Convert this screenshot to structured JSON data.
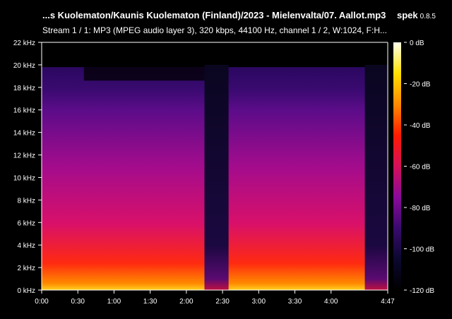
{
  "header": {
    "title": "...s Kuolematon/Kaunis Kuolematon (Finland)/2023 - Mielenvalta/07. Aallot.mp3",
    "app_name": "spek",
    "app_version": "0.8.5",
    "subtitle": "Stream 1 / 1: MP3 (MPEG audio layer 3), 320 kbps, 44100 Hz, channel 1 / 2, W:1024, F:H..."
  },
  "chart_data": {
    "type": "heatmap",
    "title": "",
    "xlabel": "",
    "ylabel": "",
    "xlim_seconds": [
      0,
      287
    ],
    "ylim_khz": [
      0,
      22
    ],
    "x_ticks": [
      {
        "label": "0:00",
        "value": 0
      },
      {
        "label": "0:30",
        "value": 30
      },
      {
        "label": "1:00",
        "value": 60
      },
      {
        "label": "1:30",
        "value": 90
      },
      {
        "label": "2:00",
        "value": 120
      },
      {
        "label": "2:30",
        "value": 150
      },
      {
        "label": "3:00",
        "value": 180
      },
      {
        "label": "3:30",
        "value": 210
      },
      {
        "label": "4:00",
        "value": 240
      },
      {
        "label": "4:47",
        "value": 287
      }
    ],
    "y_ticks": [
      {
        "label": "0 kHz",
        "value": 0
      },
      {
        "label": "2 kHz",
        "value": 2
      },
      {
        "label": "4 kHz",
        "value": 4
      },
      {
        "label": "6 kHz",
        "value": 6
      },
      {
        "label": "8 kHz",
        "value": 8
      },
      {
        "label": "10 kHz",
        "value": 10
      },
      {
        "label": "12 kHz",
        "value": 12
      },
      {
        "label": "14 kHz",
        "value": 14
      },
      {
        "label": "16 kHz",
        "value": 16
      },
      {
        "label": "18 kHz",
        "value": 18
      },
      {
        "label": "20 kHz",
        "value": 20
      },
      {
        "label": "22 kHz",
        "value": 22
      }
    ],
    "colorbar": {
      "range_db": [
        -120,
        0
      ],
      "ticks": [
        {
          "label": "0 dB",
          "value": 0
        },
        {
          "label": "-20 dB",
          "value": -20
        },
        {
          "label": "-40 dB",
          "value": -40
        },
        {
          "label": "-60 dB",
          "value": -60
        },
        {
          "label": "-80 dB",
          "value": -80
        },
        {
          "label": "-100 dB",
          "value": -100
        },
        {
          "label": "-120 dB",
          "value": -120
        }
      ],
      "colors": [
        "#000000",
        "#0b0830",
        "#3a0a6e",
        "#8a0a9a",
        "#d4105a",
        "#ff1a00",
        "#ff8a00",
        "#ffe000",
        "#ffffee"
      ]
    },
    "cutoff_khz": 19.8,
    "quiet_segments_seconds": [
      [
        135,
        155
      ],
      [
        268,
        287
      ]
    ]
  }
}
